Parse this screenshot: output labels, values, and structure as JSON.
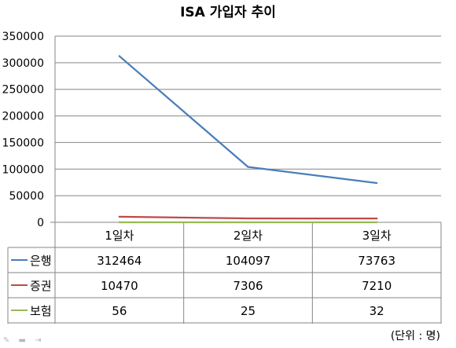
{
  "chart_data": {
    "type": "line",
    "title": "ISA 가입자 추이",
    "categories": [
      "1일차",
      "2일차",
      "3일차"
    ],
    "series": [
      {
        "name": "은행",
        "color": "#4a7ebb",
        "values": [
          312464,
          104097,
          73763
        ]
      },
      {
        "name": "증권",
        "color": "#be4b48",
        "values": [
          10470,
          7306,
          7210
        ]
      },
      {
        "name": "보험",
        "color": "#98b954",
        "values": [
          56,
          25,
          32
        ]
      }
    ],
    "yticks": [
      "0",
      "50000",
      "100000",
      "150000",
      "200000",
      "250000",
      "300000",
      "350000"
    ],
    "ylim": [
      0,
      350000
    ],
    "grid": true,
    "legend": "data-table"
  },
  "unit_note": "(단위 : 명)"
}
